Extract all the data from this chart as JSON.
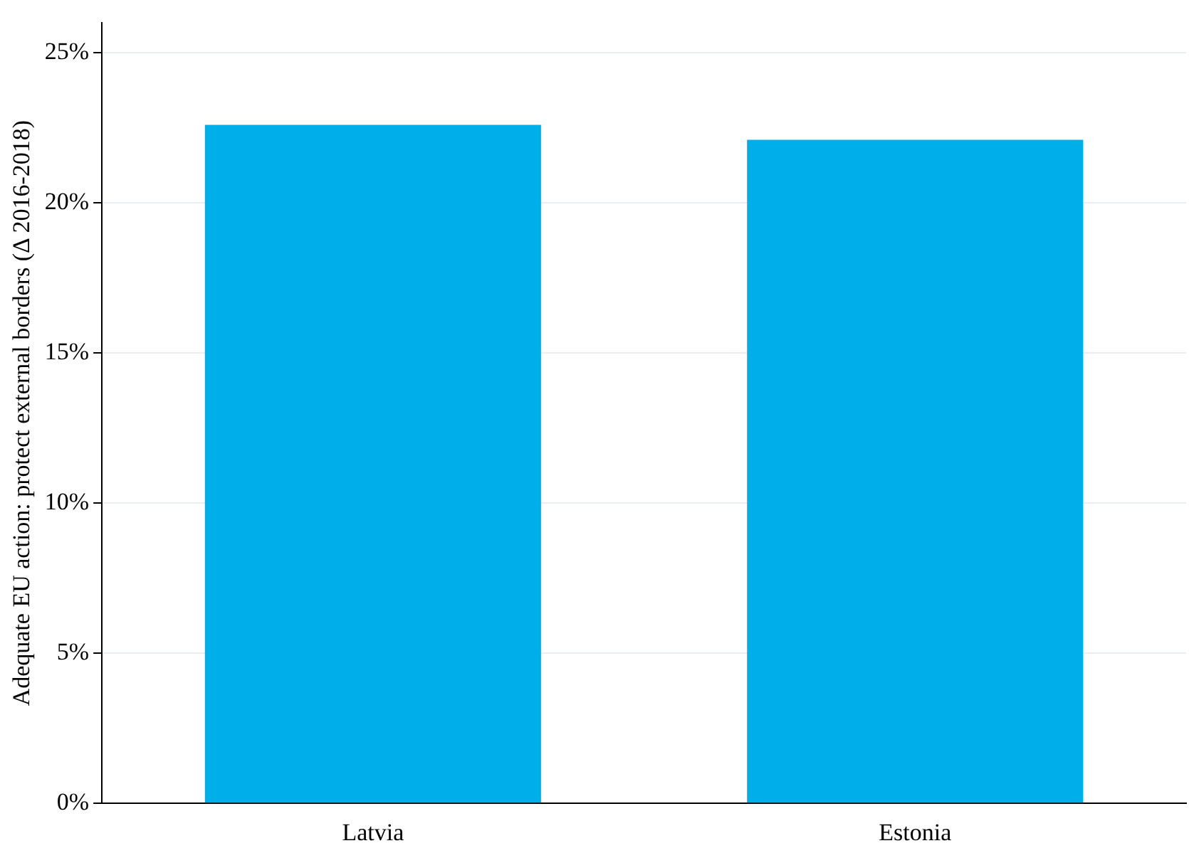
{
  "chart_data": {
    "type": "bar",
    "ylabel": "Adequate EU action: protect external borders (Δ 2016-2018)",
    "categories": [
      "Latvia",
      "Estonia"
    ],
    "values": [
      22.6,
      22.1
    ],
    "color": "#00aeea",
    "ylim": [
      0,
      26
    ],
    "yticks": [
      {
        "value": 0,
        "label": "0%"
      },
      {
        "value": 5,
        "label": "5%"
      },
      {
        "value": 10,
        "label": "10%"
      },
      {
        "value": 15,
        "label": "15%"
      },
      {
        "value": 20,
        "label": "20%"
      },
      {
        "value": 25,
        "label": "25%"
      }
    ],
    "grid": "y"
  }
}
